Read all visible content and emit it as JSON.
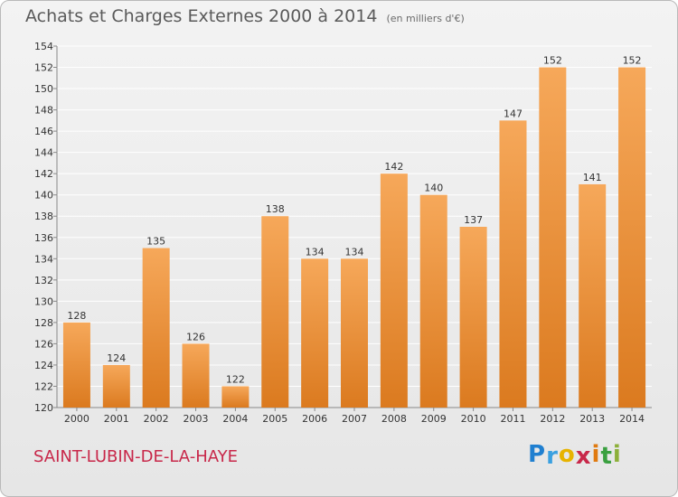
{
  "header": {
    "title": "Achats et Charges Externes 2000 à 2014",
    "unit": "(en milliers d'€)"
  },
  "footer": {
    "commune": "SAINT-LUBIN-DE-LA-HAYE",
    "brand_letters": [
      "P",
      "r",
      "o",
      "x",
      "i",
      "t",
      "i"
    ],
    "brand_colors": [
      "#1f7fd0",
      "#3aa0e0",
      "#e7b300",
      "#c8284a",
      "#e07a10",
      "#3aa040",
      "#8db03a"
    ]
  },
  "colors": {
    "bar_top": "#f6a85a",
    "bar_bottom": "#db7a1f",
    "grid": "#ffffff",
    "axis": "#888888"
  },
  "chart_data": {
    "type": "bar",
    "title": "Achats et Charges Externes 2000 à 2014",
    "ylabel": "",
    "xlabel": "",
    "categories": [
      "2000",
      "2001",
      "2002",
      "2003",
      "2004",
      "2005",
      "2006",
      "2007",
      "2008",
      "2009",
      "2010",
      "2011",
      "2012",
      "2013",
      "2014"
    ],
    "values": [
      128,
      124,
      135,
      126,
      122,
      138,
      134,
      134,
      142,
      140,
      137,
      147,
      152,
      141,
      152
    ],
    "ylim": [
      120,
      154
    ],
    "yticks": [
      120,
      122,
      124,
      126,
      128,
      130,
      132,
      134,
      136,
      138,
      140,
      142,
      144,
      146,
      148,
      150,
      152,
      154
    ],
    "grid": true
  }
}
